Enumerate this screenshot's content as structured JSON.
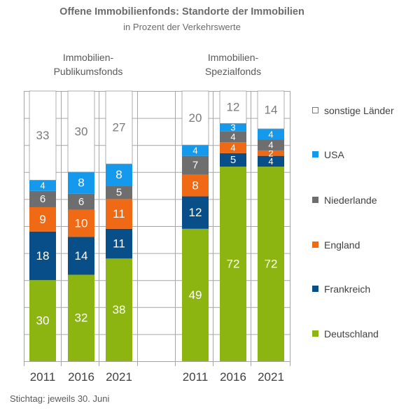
{
  "chart_data": {
    "type": "bar",
    "stacked": true,
    "title": "Offene Immobilienfonds: Standorte der Immobilien",
    "subtitle": "in Prozent der Verkehrswerte",
    "groups": [
      {
        "label": "Immobilien-\nPublikumsfonds",
        "years": [
          "2011",
          "2016",
          "2021"
        ]
      },
      {
        "label": "Immobilien-\nSpezialfonds",
        "years": [
          "2011",
          "2016",
          "2021"
        ]
      }
    ],
    "categories": [
      "2011",
      "2016",
      "2021",
      "2011",
      "2016",
      "2021"
    ],
    "series": [
      {
        "name": "Deutschland",
        "color": "#8db511",
        "values": [
          30,
          32,
          38,
          49,
          72,
          72
        ]
      },
      {
        "name": "Frankreich",
        "color": "#084f89",
        "values": [
          18,
          14,
          11,
          12,
          5,
          4
        ]
      },
      {
        "name": "England",
        "color": "#f06a15",
        "values": [
          9,
          10,
          11,
          8,
          4,
          2
        ]
      },
      {
        "name": "Niederlande",
        "color": "#6e6e6e",
        "values": [
          6,
          6,
          5,
          7,
          4,
          4
        ]
      },
      {
        "name": "USA",
        "color": "#1599ec",
        "values": [
          4,
          8,
          8,
          4,
          3,
          4
        ]
      },
      {
        "name": "sonstige Länder",
        "color": "#ffffff",
        "values": [
          33,
          30,
          27,
          20,
          12,
          14
        ]
      }
    ],
    "ylim": [
      0,
      100
    ],
    "grid": true,
    "legend_position": "right"
  },
  "footnote": "Stichtag: jeweils 30. Juni"
}
